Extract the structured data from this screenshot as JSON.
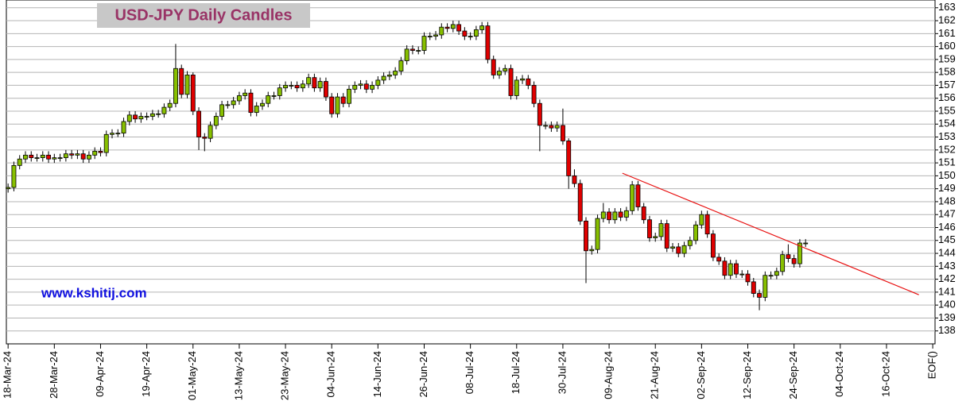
{
  "chart_data": {
    "type": "candlestick",
    "title": "USD-JPY Daily Candles",
    "watermark": "www.kshitij.com",
    "up_color": "#88c000",
    "down_color": "#e00000",
    "grid": true,
    "xlim": [
      -0.3,
      160.4
    ],
    "ylim": [
      137,
      163.6
    ],
    "xticks": [
      {
        "value": 0,
        "label": "18-Mar-24"
      },
      {
        "value": 8,
        "label": "28-Mar-24"
      },
      {
        "value": 16,
        "label": "09-Apr-24"
      },
      {
        "value": 24,
        "label": "19-Apr-24"
      },
      {
        "value": 32,
        "label": "01-May-24"
      },
      {
        "value": 40,
        "label": "13-May-24"
      },
      {
        "value": 48,
        "label": "23-May-24"
      },
      {
        "value": 56,
        "label": "04-Jun-24"
      },
      {
        "value": 64,
        "label": "14-Jun-24"
      },
      {
        "value": 72,
        "label": "26-Jun-24"
      },
      {
        "value": 80,
        "label": "08-Jul-24"
      },
      {
        "value": 88,
        "label": "18-Jul-24"
      },
      {
        "value": 96,
        "label": "30-Jul-24"
      },
      {
        "value": 104,
        "label": "09-Aug-24"
      },
      {
        "value": 112,
        "label": "21-Aug-24"
      },
      {
        "value": 120,
        "label": "02-Sep-24"
      },
      {
        "value": 128,
        "label": "12-Sep-24"
      },
      {
        "value": 136,
        "label": "24-Sep-24"
      },
      {
        "value": 144,
        "label": "04-Oct-24"
      },
      {
        "value": 152,
        "label": "16-Oct-24"
      },
      {
        "value": 160,
        "label": "EOF()"
      }
    ],
    "yticks": [
      138,
      139,
      140,
      141,
      142,
      143,
      144,
      145,
      146,
      147,
      148,
      149,
      150,
      151,
      152,
      153,
      154,
      155,
      156,
      157,
      158,
      159,
      160,
      161,
      162,
      163
    ],
    "x": [
      0,
      1,
      2,
      3,
      4,
      5,
      6,
      7,
      8,
      9,
      10,
      11,
      12,
      13,
      14,
      15,
      16,
      17,
      18,
      19,
      20,
      21,
      22,
      23,
      24,
      25,
      26,
      27,
      28,
      29,
      30,
      31,
      32,
      33,
      34,
      35,
      36,
      37,
      38,
      39,
      40,
      41,
      42,
      43,
      44,
      45,
      46,
      47,
      48,
      49,
      50,
      51,
      52,
      53,
      54,
      55,
      56,
      57,
      58,
      59,
      60,
      61,
      62,
      63,
      64,
      65,
      66,
      67,
      68,
      69,
      70,
      71,
      72,
      73,
      74,
      75,
      76,
      77,
      78,
      79,
      80,
      81,
      82,
      83,
      84,
      85,
      86,
      87,
      88,
      89,
      90,
      91,
      92,
      93,
      94,
      95,
      96,
      97,
      98,
      99,
      100,
      101,
      102,
      103,
      104,
      105,
      106,
      107,
      108,
      109,
      110,
      111,
      112,
      113,
      114,
      115,
      116,
      117,
      118,
      119,
      120,
      121,
      122,
      123,
      124,
      125,
      126,
      127,
      128,
      129,
      130,
      131,
      132,
      133,
      134,
      135,
      136,
      137,
      138
    ],
    "open": [
      149.0,
      149.1,
      150.8,
      151.3,
      151.6,
      151.4,
      151.4,
      151.6,
      151.3,
      151.4,
      151.4,
      151.7,
      151.6,
      151.7,
      151.3,
      151.6,
      151.9,
      151.8,
      153.2,
      153.3,
      153.3,
      154.2,
      154.7,
      154.4,
      154.6,
      154.6,
      154.8,
      154.8,
      155.3,
      155.6,
      158.3,
      156.3,
      157.8,
      155.0,
      153.0,
      152.9,
      153.9,
      154.6,
      155.5,
      155.5,
      155.8,
      156.2,
      156.4,
      154.9,
      155.4,
      155.6,
      156.2,
      156.2,
      156.8,
      157.0,
      157.0,
      156.8,
      157.1,
      157.6,
      156.8,
      157.3,
      156.1,
      154.8,
      156.1,
      155.6,
      156.7,
      157.0,
      157.1,
      156.7,
      157.0,
      157.4,
      157.7,
      157.8,
      158.1,
      158.9,
      159.8,
      159.7,
      159.7,
      160.8,
      160.8,
      160.9,
      161.5,
      161.4,
      161.7,
      161.2,
      160.8,
      160.8,
      161.3,
      161.6,
      159.0,
      157.8,
      158.1,
      158.3,
      156.2,
      157.4,
      157.5,
      157.0,
      155.6,
      153.9,
      153.9,
      153.7,
      153.9,
      152.7,
      150.0,
      149.4,
      146.5,
      144.2,
      144.3,
      146.7,
      147.2,
      146.6,
      147.2,
      146.8,
      147.3,
      149.3,
      147.6,
      146.6,
      145.2,
      145.3,
      146.3,
      144.4,
      144.5,
      144.0,
      144.6,
      145.0,
      146.2,
      147.0,
      145.5,
      143.7,
      143.4,
      142.3,
      143.2,
      142.4,
      142.4,
      141.8,
      140.9,
      140.6,
      142.3,
      142.3,
      142.6,
      143.9,
      143.6,
      143.2,
      144.8
    ],
    "high": [
      149.4,
      151.1,
      151.6,
      151.9,
      151.9,
      151.7,
      151.9,
      151.9,
      151.7,
      151.7,
      152.0,
      152.0,
      152.0,
      152.0,
      151.9,
      152.2,
      152.2,
      153.5,
      153.6,
      153.6,
      154.5,
      155.0,
      155.0,
      154.9,
      154.9,
      155.1,
      155.1,
      155.6,
      155.9,
      160.2,
      158.6,
      158.1,
      158.0,
      155.3,
      153.3,
      154.2,
      154.9,
      155.8,
      155.8,
      156.1,
      156.5,
      156.7,
      156.7,
      155.7,
      155.9,
      156.5,
      156.5,
      157.1,
      157.3,
      157.3,
      157.3,
      157.4,
      157.9,
      157.9,
      157.6,
      157.6,
      156.4,
      156.4,
      156.4,
      157.0,
      157.3,
      157.4,
      157.4,
      157.3,
      157.7,
      158.0,
      158.1,
      158.4,
      159.2,
      160.1,
      160.1,
      160.0,
      161.1,
      161.1,
      161.2,
      161.8,
      161.8,
      162.0,
      162.0,
      161.5,
      161.1,
      161.6,
      161.9,
      161.9,
      159.3,
      158.4,
      158.6,
      158.6,
      157.7,
      157.8,
      157.8,
      157.3,
      155.9,
      154.2,
      154.2,
      154.2,
      155.2,
      152.9,
      150.5,
      149.7,
      146.8,
      144.6,
      147.0,
      147.9,
      147.5,
      147.5,
      147.5,
      147.6,
      149.6,
      149.6,
      147.9,
      146.9,
      145.6,
      146.6,
      146.6,
      144.8,
      144.8,
      144.9,
      145.3,
      146.5,
      147.3,
      147.3,
      145.8,
      144.0,
      143.7,
      143.5,
      143.5,
      142.7,
      142.7,
      142.1,
      141.2,
      142.6,
      142.6,
      142.9,
      144.2,
      144.7,
      143.9,
      145.1,
      145.1
    ],
    "low": [
      148.7,
      148.8,
      150.5,
      151.0,
      151.1,
      151.1,
      151.1,
      151.0,
      151.0,
      151.1,
      151.1,
      151.3,
      151.3,
      151.0,
      151.0,
      151.3,
      151.5,
      151.5,
      152.9,
      153.0,
      153.0,
      153.9,
      154.1,
      154.1,
      154.3,
      154.3,
      154.5,
      154.5,
      155.0,
      155.3,
      156.0,
      156.0,
      154.7,
      152.0,
      151.9,
      152.6,
      153.6,
      154.3,
      155.2,
      155.2,
      155.5,
      155.9,
      154.6,
      154.6,
      155.1,
      155.3,
      155.9,
      155.9,
      156.5,
      156.7,
      156.5,
      156.5,
      156.8,
      156.5,
      156.5,
      155.8,
      154.5,
      154.5,
      155.3,
      155.3,
      156.4,
      156.7,
      156.4,
      156.4,
      156.7,
      157.1,
      157.4,
      157.5,
      157.8,
      158.6,
      159.4,
      159.4,
      159.4,
      160.5,
      160.5,
      160.6,
      161.1,
      161.1,
      160.9,
      160.5,
      160.5,
      160.5,
      161.0,
      158.7,
      157.5,
      157.5,
      157.8,
      155.9,
      155.9,
      157.1,
      156.7,
      155.3,
      151.9,
      153.6,
      153.4,
      153.4,
      152.4,
      149.0,
      149.1,
      146.2,
      141.7,
      143.9,
      144.0,
      146.4,
      146.3,
      146.3,
      146.5,
      146.5,
      147.0,
      147.3,
      146.3,
      144.9,
      144.9,
      145.0,
      144.1,
      144.1,
      143.7,
      143.7,
      144.3,
      144.7,
      145.9,
      145.2,
      143.4,
      143.1,
      142.0,
      142.0,
      142.1,
      142.1,
      141.5,
      140.6,
      139.6,
      140.3,
      142.0,
      142.0,
      142.3,
      143.3,
      142.9,
      142.9,
      144.5
    ],
    "close": [
      149.1,
      150.8,
      151.3,
      151.6,
      151.4,
      151.4,
      151.6,
      151.3,
      151.4,
      151.4,
      151.7,
      151.6,
      151.7,
      151.3,
      151.6,
      151.9,
      151.8,
      153.2,
      153.3,
      153.3,
      154.2,
      154.7,
      154.4,
      154.6,
      154.6,
      154.8,
      154.8,
      155.3,
      155.6,
      158.3,
      156.3,
      157.8,
      155.0,
      153.0,
      152.9,
      153.9,
      154.6,
      155.5,
      155.5,
      155.8,
      156.2,
      156.4,
      154.9,
      155.4,
      155.6,
      156.2,
      156.2,
      156.8,
      157.0,
      157.0,
      156.8,
      157.1,
      157.6,
      156.8,
      157.3,
      156.1,
      154.8,
      156.1,
      155.6,
      156.7,
      157.0,
      157.1,
      156.7,
      157.0,
      157.4,
      157.7,
      157.8,
      158.1,
      158.9,
      159.8,
      159.7,
      159.7,
      160.8,
      160.8,
      160.9,
      161.5,
      161.4,
      161.7,
      161.2,
      160.8,
      160.8,
      161.3,
      161.6,
      159.0,
      157.8,
      158.1,
      158.3,
      156.2,
      157.4,
      157.5,
      157.0,
      155.6,
      153.9,
      153.9,
      153.7,
      153.9,
      152.7,
      150.0,
      149.4,
      146.5,
      144.2,
      144.3,
      146.7,
      147.2,
      146.6,
      147.2,
      146.8,
      147.3,
      149.3,
      147.6,
      146.6,
      145.2,
      145.3,
      146.3,
      144.4,
      144.5,
      144.0,
      144.6,
      145.0,
      146.2,
      147.0,
      145.5,
      143.7,
      143.4,
      142.3,
      143.2,
      142.4,
      142.4,
      141.8,
      140.9,
      140.6,
      142.3,
      142.3,
      142.6,
      143.9,
      143.6,
      143.2,
      144.8,
      144.8
    ],
    "trendline": {
      "x": [
        106.3,
        157.6
      ],
      "y": [
        150.2,
        140.8
      ],
      "color": "#e81010"
    }
  }
}
